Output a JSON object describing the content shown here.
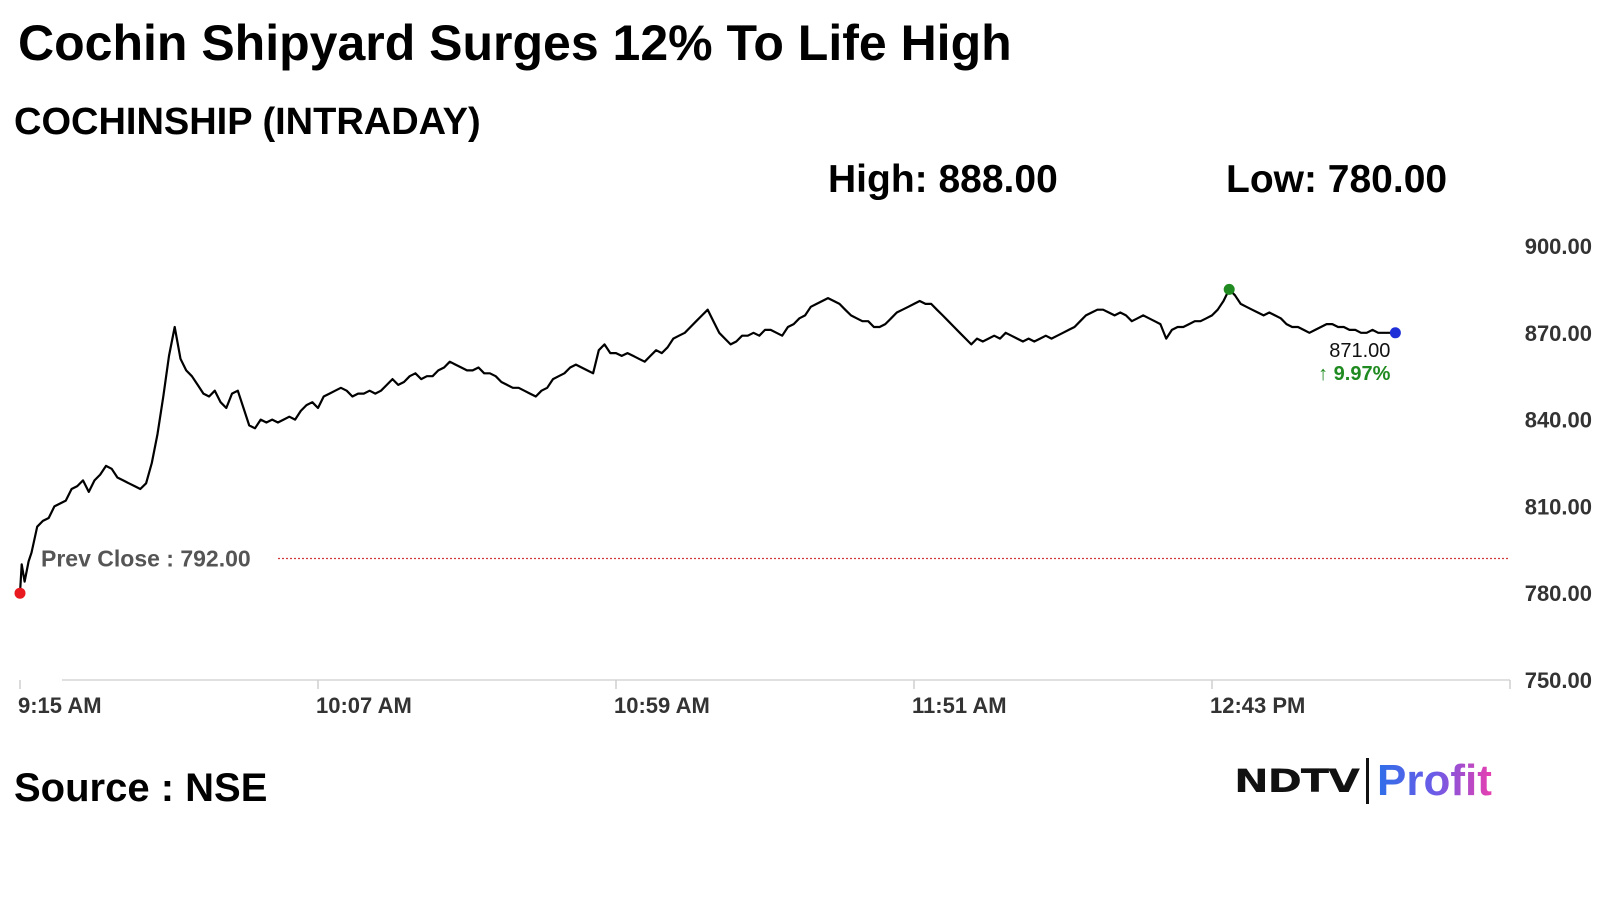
{
  "title": "Cochin Shipyard Surges 12% To Life High",
  "subtitle": "COCHINSHIP (INTRADAY)",
  "stats": {
    "high": "High: 888.00",
    "low": "Low: 780.00"
  },
  "source": "Source : NSE",
  "logo": {
    "part1": "NDTV",
    "part2": "Profit"
  },
  "chart_data": {
    "type": "line",
    "title": "COCHINSHIP (INTRADAY)",
    "xlabel": "",
    "ylabel": "",
    "ylim": [
      750,
      900
    ],
    "y_ticks": [
      750,
      780,
      810,
      840,
      870,
      900
    ],
    "y_tick_labels": [
      "750.00",
      "780.00",
      "810.00",
      "840.00",
      "870.00",
      "900.00"
    ],
    "x_ticks": [
      0,
      52,
      104,
      156,
      208
    ],
    "x_tick_labels": [
      "9:15 AM",
      "10:07 AM",
      "10:59 AM",
      "11:51 AM",
      "12:43 PM"
    ],
    "xlim": [
      0,
      260
    ],
    "grid": false,
    "prev_close": {
      "label": "Prev Close : 792.00",
      "value": 792
    },
    "last": {
      "price": "871.00",
      "change": "↑ 9.97%",
      "value": 870
    },
    "series": [
      {
        "color": "#000000",
        "points": [
          [
            0,
            780
          ],
          [
            0.3,
            790
          ],
          [
            0.8,
            784
          ],
          [
            1.5,
            791
          ],
          [
            2,
            794
          ],
          [
            3,
            803
          ],
          [
            4,
            805
          ],
          [
            5,
            806
          ],
          [
            6,
            810
          ],
          [
            7,
            811
          ],
          [
            8,
            812
          ],
          [
            9,
            816
          ],
          [
            10,
            817
          ],
          [
            11,
            819
          ],
          [
            12,
            815
          ],
          [
            13,
            819
          ],
          [
            14,
            821
          ],
          [
            15,
            824
          ],
          [
            16,
            823
          ],
          [
            17,
            820
          ],
          [
            18,
            819
          ],
          [
            19,
            818
          ],
          [
            20,
            817
          ],
          [
            21,
            816
          ],
          [
            22,
            818
          ],
          [
            23,
            825
          ],
          [
            24,
            835
          ],
          [
            25,
            848
          ],
          [
            26,
            862
          ],
          [
            27,
            872
          ],
          [
            28,
            861
          ],
          [
            29,
            857
          ],
          [
            30,
            855
          ],
          [
            31,
            852
          ],
          [
            32,
            849
          ],
          [
            33,
            848
          ],
          [
            34,
            850
          ],
          [
            35,
            846
          ],
          [
            36,
            844
          ],
          [
            37,
            849
          ],
          [
            38,
            850
          ],
          [
            39,
            844
          ],
          [
            40,
            838
          ],
          [
            41,
            837
          ],
          [
            42,
            840
          ],
          [
            43,
            839
          ],
          [
            44,
            840
          ],
          [
            45,
            839
          ],
          [
            46,
            840
          ],
          [
            47,
            841
          ],
          [
            48,
            840
          ],
          [
            49,
            843
          ],
          [
            50,
            845
          ],
          [
            51,
            846
          ],
          [
            52,
            844
          ],
          [
            53,
            848
          ],
          [
            54,
            849
          ],
          [
            55,
            850
          ],
          [
            56,
            851
          ],
          [
            57,
            850
          ],
          [
            58,
            848
          ],
          [
            59,
            849
          ],
          [
            60,
            849
          ],
          [
            61,
            850
          ],
          [
            62,
            849
          ],
          [
            63,
            850
          ],
          [
            64,
            852
          ],
          [
            65,
            854
          ],
          [
            66,
            852
          ],
          [
            67,
            853
          ],
          [
            68,
            855
          ],
          [
            69,
            856
          ],
          [
            70,
            854
          ],
          [
            71,
            855
          ],
          [
            72,
            855
          ],
          [
            73,
            857
          ],
          [
            74,
            858
          ],
          [
            75,
            860
          ],
          [
            76,
            859
          ],
          [
            77,
            858
          ],
          [
            78,
            857
          ],
          [
            79,
            857
          ],
          [
            80,
            858
          ],
          [
            81,
            856
          ],
          [
            82,
            856
          ],
          [
            83,
            855
          ],
          [
            84,
            853
          ],
          [
            85,
            852
          ],
          [
            86,
            851
          ],
          [
            87,
            851
          ],
          [
            88,
            850
          ],
          [
            89,
            849
          ],
          [
            90,
            848
          ],
          [
            91,
            850
          ],
          [
            92,
            851
          ],
          [
            93,
            854
          ],
          [
            94,
            855
          ],
          [
            95,
            856
          ],
          [
            96,
            858
          ],
          [
            97,
            859
          ],
          [
            98,
            858
          ],
          [
            99,
            857
          ],
          [
            100,
            856
          ],
          [
            101,
            864
          ],
          [
            102,
            866
          ],
          [
            103,
            863
          ],
          [
            104,
            863
          ],
          [
            105,
            862
          ],
          [
            106,
            863
          ],
          [
            107,
            862
          ],
          [
            108,
            861
          ],
          [
            109,
            860
          ],
          [
            110,
            862
          ],
          [
            111,
            864
          ],
          [
            112,
            863
          ],
          [
            113,
            865
          ],
          [
            114,
            868
          ],
          [
            115,
            869
          ],
          [
            116,
            870
          ],
          [
            117,
            872
          ],
          [
            118,
            874
          ],
          [
            119,
            876
          ],
          [
            120,
            878
          ],
          [
            121,
            874
          ],
          [
            122,
            870
          ],
          [
            123,
            868
          ],
          [
            124,
            866
          ],
          [
            125,
            867
          ],
          [
            126,
            869
          ],
          [
            127,
            869
          ],
          [
            128,
            870
          ],
          [
            129,
            869
          ],
          [
            130,
            871
          ],
          [
            131,
            871
          ],
          [
            132,
            870
          ],
          [
            133,
            869
          ],
          [
            134,
            872
          ],
          [
            135,
            873
          ],
          [
            136,
            875
          ],
          [
            137,
            876
          ],
          [
            138,
            879
          ],
          [
            139,
            880
          ],
          [
            140,
            881
          ],
          [
            141,
            882
          ],
          [
            142,
            881
          ],
          [
            143,
            880
          ],
          [
            144,
            878
          ],
          [
            145,
            876
          ],
          [
            146,
            875
          ],
          [
            147,
            874
          ],
          [
            148,
            874
          ],
          [
            149,
            872
          ],
          [
            150,
            872
          ],
          [
            151,
            873
          ],
          [
            152,
            875
          ],
          [
            153,
            877
          ],
          [
            154,
            878
          ],
          [
            155,
            879
          ],
          [
            156,
            880
          ],
          [
            157,
            881
          ],
          [
            158,
            880
          ],
          [
            159,
            880
          ],
          [
            160,
            878
          ],
          [
            161,
            876
          ],
          [
            162,
            874
          ],
          [
            163,
            872
          ],
          [
            164,
            870
          ],
          [
            165,
            868
          ],
          [
            166,
            866
          ],
          [
            167,
            868
          ],
          [
            168,
            867
          ],
          [
            169,
            868
          ],
          [
            170,
            869
          ],
          [
            171,
            868
          ],
          [
            172,
            870
          ],
          [
            173,
            869
          ],
          [
            174,
            868
          ],
          [
            175,
            867
          ],
          [
            176,
            868
          ],
          [
            177,
            867
          ],
          [
            178,
            868
          ],
          [
            179,
            869
          ],
          [
            180,
            868
          ],
          [
            181,
            869
          ],
          [
            182,
            870
          ],
          [
            183,
            871
          ],
          [
            184,
            872
          ],
          [
            185,
            874
          ],
          [
            186,
            876
          ],
          [
            187,
            877
          ],
          [
            188,
            878
          ],
          [
            189,
            878
          ],
          [
            190,
            877
          ],
          [
            191,
            876
          ],
          [
            192,
            877
          ],
          [
            193,
            876
          ],
          [
            194,
            874
          ],
          [
            195,
            875
          ],
          [
            196,
            876
          ],
          [
            197,
            875
          ],
          [
            198,
            874
          ],
          [
            199,
            873
          ],
          [
            200,
            868
          ],
          [
            201,
            871
          ],
          [
            202,
            872
          ],
          [
            203,
            872
          ],
          [
            204,
            873
          ],
          [
            205,
            874
          ],
          [
            206,
            874
          ],
          [
            207,
            875
          ],
          [
            208,
            876
          ],
          [
            209,
            878
          ],
          [
            210,
            881
          ],
          [
            211,
            885
          ],
          [
            212,
            883
          ],
          [
            213,
            880
          ],
          [
            214,
            879
          ],
          [
            215,
            878
          ],
          [
            216,
            877
          ],
          [
            217,
            876
          ],
          [
            218,
            877
          ],
          [
            219,
            876
          ],
          [
            220,
            875
          ],
          [
            221,
            873
          ],
          [
            222,
            872
          ],
          [
            223,
            872
          ],
          [
            224,
            871
          ],
          [
            225,
            870
          ],
          [
            226,
            871
          ],
          [
            227,
            872
          ],
          [
            228,
            873
          ],
          [
            229,
            873
          ],
          [
            230,
            872
          ],
          [
            231,
            872
          ],
          [
            232,
            871
          ],
          [
            233,
            871
          ],
          [
            234,
            870
          ],
          [
            235,
            870
          ],
          [
            236,
            871
          ],
          [
            237,
            870
          ],
          [
            238,
            870
          ],
          [
            239,
            870
          ],
          [
            240,
            870
          ]
        ]
      }
    ],
    "markers": [
      {
        "name": "low-marker",
        "x": 0,
        "y": 780,
        "color": "#e8191f"
      },
      {
        "name": "high-marker",
        "x": 211,
        "y": 885,
        "color": "#1f8a1f"
      },
      {
        "name": "last-marker",
        "x": 240,
        "y": 870,
        "color": "#1f2fd8"
      }
    ]
  }
}
